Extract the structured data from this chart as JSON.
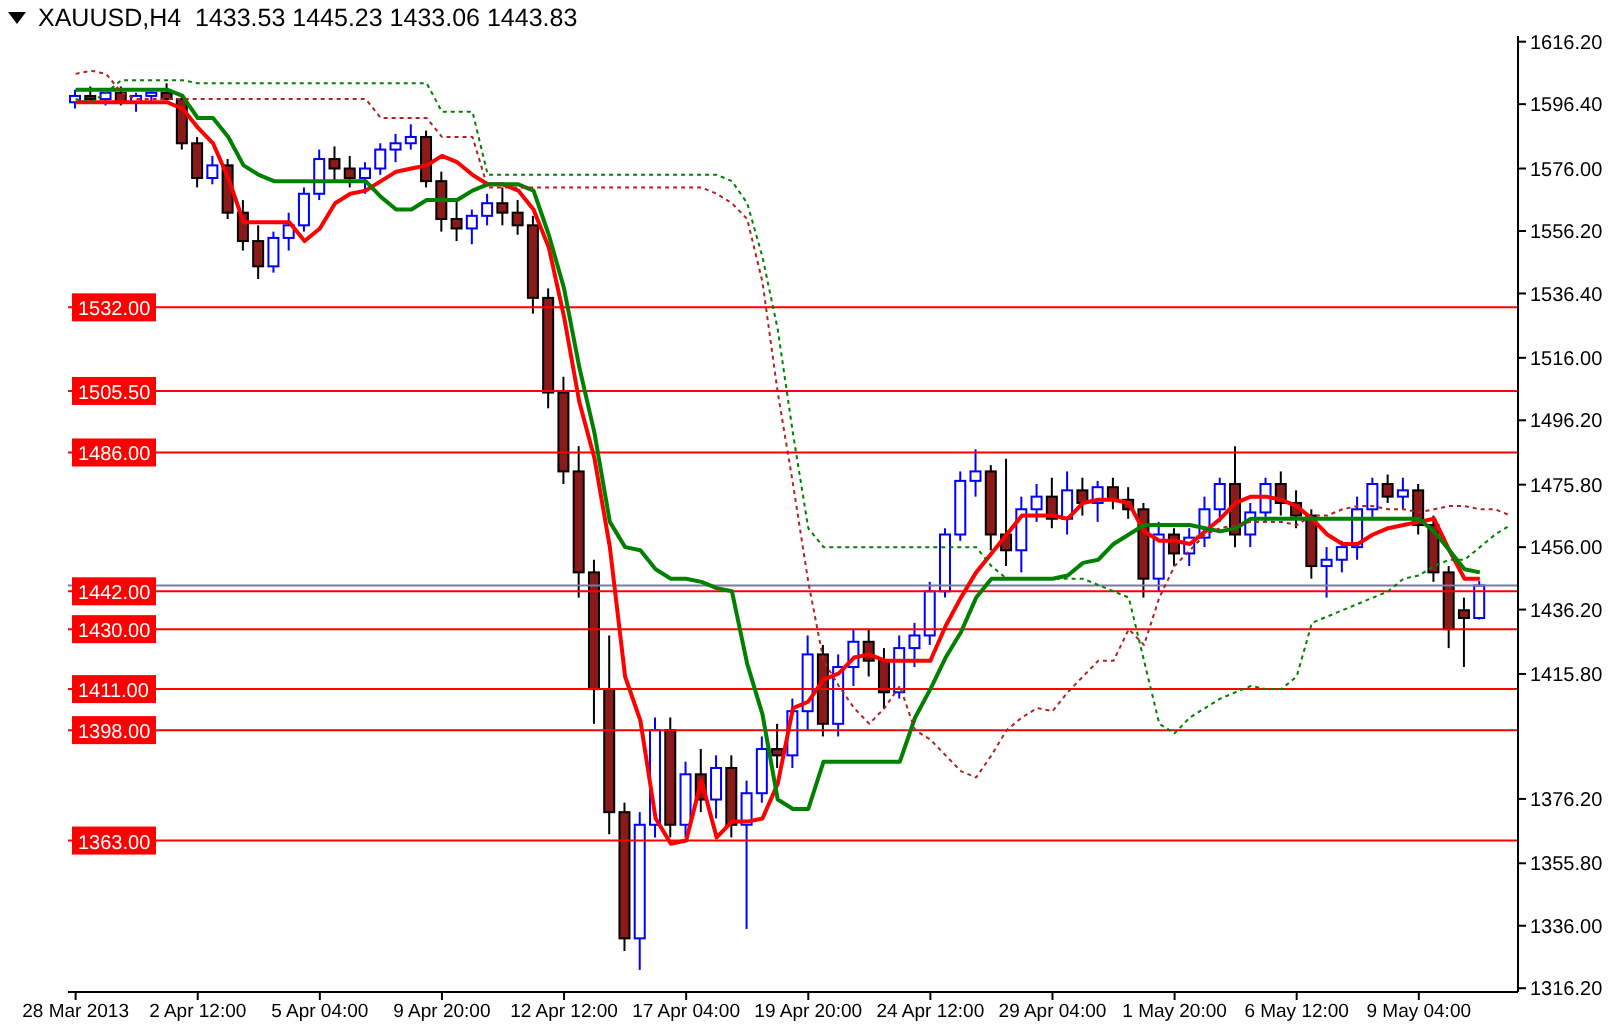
{
  "chart_data": {
    "type": "candlestick",
    "title": "XAUUSD,H4  1433.53 1445.23 1433.06 1443.83",
    "categories": [
      "28 Mar 2013",
      null,
      null,
      null,
      null,
      null,
      null,
      null,
      "2 Apr 12:00",
      null,
      null,
      null,
      null,
      null,
      null,
      null,
      "5 Apr 04:00",
      null,
      null,
      null,
      null,
      null,
      null,
      null,
      "9 Apr 20:00",
      null,
      null,
      null,
      null,
      null,
      null,
      null,
      "12 Apr 12:00",
      null,
      null,
      null,
      null,
      null,
      null,
      null,
      "17 Apr 04:00",
      null,
      null,
      null,
      null,
      null,
      null,
      null,
      "19 Apr 20:00",
      null,
      null,
      null,
      null,
      null,
      null,
      null,
      "24 Apr 12:00",
      null,
      null,
      null,
      null,
      null,
      null,
      null,
      "29 Apr 04:00",
      null,
      null,
      null,
      null,
      null,
      null,
      null,
      "1 May 20:00",
      null,
      null,
      null,
      null,
      null,
      null,
      null,
      "6 May 12:00",
      null,
      null,
      null,
      null,
      null,
      null,
      null,
      "9 May 04:00",
      null,
      null,
      null,
      null,
      null,
      null
    ],
    "ohlc": [
      [
        1597,
        1601,
        1595,
        1599
      ],
      [
        1599,
        1602,
        1597,
        1598
      ],
      [
        1598,
        1600,
        1596,
        1600
      ],
      [
        1600,
        1602,
        1596,
        1597
      ],
      [
        1597,
        1600,
        1594,
        1599
      ],
      [
        1599,
        1601,
        1597,
        1600
      ],
      [
        1600,
        1603,
        1598,
        1598
      ],
      [
        1598,
        1599,
        1582,
        1584
      ],
      [
        1584,
        1586,
        1570,
        1573
      ],
      [
        1573,
        1580,
        1571,
        1577
      ],
      [
        1577,
        1579,
        1560,
        1562
      ],
      [
        1562,
        1566,
        1550,
        1553
      ],
      [
        1553,
        1558,
        1541,
        1545
      ],
      [
        1545,
        1556,
        1543,
        1554
      ],
      [
        1554,
        1562,
        1550,
        1558
      ],
      [
        1558,
        1570,
        1556,
        1568
      ],
      [
        1568,
        1582,
        1566,
        1579
      ],
      [
        1579,
        1583,
        1572,
        1576
      ],
      [
        1576,
        1580,
        1570,
        1573
      ],
      [
        1573,
        1578,
        1568,
        1576
      ],
      [
        1576,
        1584,
        1574,
        1582
      ],
      [
        1582,
        1587,
        1578,
        1584
      ],
      [
        1584,
        1590,
        1582,
        1586
      ],
      [
        1586,
        1588,
        1570,
        1572
      ],
      [
        1572,
        1575,
        1556,
        1560
      ],
      [
        1560,
        1566,
        1553,
        1557
      ],
      [
        1557,
        1563,
        1552,
        1561
      ],
      [
        1561,
        1568,
        1558,
        1565
      ],
      [
        1565,
        1570,
        1558,
        1562
      ],
      [
        1562,
        1566,
        1555,
        1558
      ],
      [
        1558,
        1561,
        1530,
        1535
      ],
      [
        1535,
        1538,
        1500,
        1505
      ],
      [
        1505,
        1510,
        1476,
        1480
      ],
      [
        1480,
        1488,
        1440,
        1448
      ],
      [
        1448,
        1452,
        1400,
        1411
      ],
      [
        1411,
        1428,
        1365,
        1372
      ],
      [
        1372,
        1375,
        1328,
        1332
      ],
      [
        1332,
        1372,
        1322,
        1368
      ],
      [
        1368,
        1402,
        1364,
        1398
      ],
      [
        1398,
        1402,
        1364,
        1368
      ],
      [
        1368,
        1388,
        1364,
        1384
      ],
      [
        1384,
        1392,
        1372,
        1376
      ],
      [
        1376,
        1390,
        1370,
        1386
      ],
      [
        1386,
        1390,
        1364,
        1368
      ],
      [
        1368,
        1382,
        1335,
        1378
      ],
      [
        1378,
        1396,
        1375,
        1392
      ],
      [
        1392,
        1400,
        1386,
        1390
      ],
      [
        1390,
        1408,
        1386,
        1404
      ],
      [
        1404,
        1428,
        1398,
        1422
      ],
      [
        1422,
        1425,
        1396,
        1400
      ],
      [
        1400,
        1422,
        1396,
        1418
      ],
      [
        1418,
        1430,
        1412,
        1426
      ],
      [
        1426,
        1430,
        1415,
        1420
      ],
      [
        1420,
        1424,
        1405,
        1410
      ],
      [
        1410,
        1428,
        1408,
        1424
      ],
      [
        1424,
        1432,
        1418,
        1428
      ],
      [
        1428,
        1445,
        1425,
        1442
      ],
      [
        1442,
        1462,
        1440,
        1460
      ],
      [
        1460,
        1480,
        1458,
        1477
      ],
      [
        1477,
        1487,
        1472,
        1480
      ],
      [
        1480,
        1482,
        1455,
        1460
      ],
      [
        1460,
        1484,
        1450,
        1455
      ],
      [
        1455,
        1472,
        1448,
        1468
      ],
      [
        1468,
        1476,
        1464,
        1472
      ],
      [
        1472,
        1478,
        1462,
        1465
      ],
      [
        1465,
        1480,
        1460,
        1474
      ],
      [
        1474,
        1478,
        1466,
        1470
      ],
      [
        1470,
        1477,
        1464,
        1475
      ],
      [
        1475,
        1478,
        1468,
        1471
      ],
      [
        1471,
        1475,
        1465,
        1468
      ],
      [
        1468,
        1470,
        1440,
        1446
      ],
      [
        1446,
        1464,
        1442,
        1460
      ],
      [
        1460,
        1462,
        1450,
        1454
      ],
      [
        1454,
        1462,
        1450,
        1459
      ],
      [
        1459,
        1472,
        1456,
        1468
      ],
      [
        1468,
        1478,
        1464,
        1476
      ],
      [
        1476,
        1488,
        1456,
        1460
      ],
      [
        1460,
        1470,
        1456,
        1467
      ],
      [
        1467,
        1478,
        1464,
        1476
      ],
      [
        1476,
        1480,
        1466,
        1470
      ],
      [
        1470,
        1474,
        1462,
        1466
      ],
      [
        1466,
        1468,
        1446,
        1450
      ],
      [
        1450,
        1456,
        1440,
        1452
      ],
      [
        1452,
        1458,
        1448,
        1456
      ],
      [
        1456,
        1472,
        1452,
        1468
      ],
      [
        1468,
        1478,
        1465,
        1476
      ],
      [
        1476,
        1479,
        1470,
        1472
      ],
      [
        1472,
        1478,
        1468,
        1474
      ],
      [
        1474,
        1476,
        1460,
        1463
      ],
      [
        1463,
        1466,
        1445,
        1448
      ],
      [
        1448,
        1450,
        1424,
        1430
      ],
      [
        1436,
        1440,
        1418,
        1433.53
      ],
      [
        1433.53,
        1445.23,
        1433.06,
        1443.83
      ],
      null,
      null
    ],
    "series": [
      {
        "type": "line",
        "color": "#ff0000",
        "values": [
          1597,
          1597,
          1597,
          1597,
          1597,
          1597,
          1597,
          1595,
          1589,
          1584,
          1573,
          1559,
          1559,
          1559,
          1559,
          1553,
          1557,
          1565,
          1568,
          1569,
          1572,
          1575,
          1576,
          1577,
          1580,
          1578,
          1574,
          1571,
          1571,
          1569,
          1563,
          1551,
          1529,
          1502,
          1484,
          1456,
          1415,
          1401,
          1370,
          1362,
          1363,
          1382,
          1364,
          1369,
          1369,
          1370,
          1381,
          1405,
          1407,
          1414,
          1416,
          1421,
          1422,
          1420,
          1420,
          1420,
          1420,
          1431,
          1440,
          1448,
          1454,
          1460,
          1466,
          1466,
          1466,
          1465,
          1470,
          1471,
          1471,
          1470,
          1461,
          1458,
          1458,
          1457,
          1461,
          1465,
          1470,
          1472,
          1472,
          1471,
          1469,
          1465,
          1460,
          1457,
          1457,
          1460,
          1462,
          1463,
          1464,
          1465,
          1455,
          1446,
          1446,
          null,
          null
        ]
      },
      {
        "type": "line",
        "color": "#008000",
        "values": [
          1601,
          1601,
          1601,
          1601,
          1601,
          1601,
          1601,
          1599,
          1592,
          1592,
          1586,
          1577,
          1574,
          1572,
          1572,
          1572,
          1572,
          1572,
          1572,
          1572,
          1567,
          1563,
          1563,
          1566,
          1566,
          1566,
          1569,
          1571,
          1571,
          1571,
          1569,
          1555,
          1538,
          1513,
          1492,
          1464,
          1456,
          1455,
          1449,
          1446,
          1446,
          1445,
          1443,
          1442,
          1419,
          1403,
          1376,
          1373,
          1373,
          1388,
          1388,
          1388,
          1388,
          1388,
          1388,
          1402,
          1411,
          1421,
          1429,
          1440,
          1446,
          1446,
          1446,
          1446,
          1446,
          1447,
          1451,
          1452,
          1457,
          1460,
          1463,
          1463,
          1463,
          1463,
          1462,
          1461,
          1462,
          1465,
          1465,
          1465,
          1465,
          1465,
          1465,
          1465,
          1465,
          1465,
          1465,
          1465,
          1465,
          1461,
          1455,
          1449,
          1448,
          null,
          null
        ]
      },
      {
        "type": "line",
        "color": "#008000",
        "line_style": "dotted",
        "values": [
          1598,
          1597,
          1600,
          1604,
          1604,
          1604,
          1604,
          1604,
          1603,
          1603,
          1603,
          1603,
          1603,
          1603,
          1603,
          1603,
          1603,
          1603,
          1603,
          1603,
          1603,
          1603,
          1603,
          1603,
          1594,
          1594,
          1594,
          1574,
          1574,
          1574,
          1574,
          1574,
          1574,
          1574,
          1574,
          1574,
          1574,
          1574,
          1574,
          1574,
          1574,
          1574,
          1574,
          1572,
          1565,
          1548,
          1525,
          1492,
          1462,
          1456,
          1456,
          1456,
          1456,
          1456,
          1456,
          1456,
          1456,
          1456,
          1456,
          1456,
          1450,
          1446,
          1446,
          1446,
          1446,
          1446,
          1446,
          1444,
          1442,
          1440,
          1420,
          1400,
          1397,
          1402,
          1405,
          1408,
          1410,
          1412,
          1411,
          1411,
          1415,
          1432,
          1434,
          1436,
          1438,
          1440,
          1442,
          1446,
          1447,
          1450,
          1452,
          1452,
          1456,
          1460,
          1463
        ]
      },
      {
        "type": "line",
        "color": "#b22222",
        "line_style": "dotted",
        "values": [
          1606,
          1607,
          1606,
          1600,
          1598,
          1598,
          1598,
          1598,
          1598,
          1598,
          1598,
          1598,
          1598,
          1598,
          1598,
          1598,
          1598,
          1598,
          1598,
          1598,
          1592,
          1592,
          1592,
          1592,
          1586,
          1586,
          1586,
          1570,
          1570,
          1570,
          1570,
          1570,
          1570,
          1570,
          1570,
          1570,
          1570,
          1570,
          1570,
          1570,
          1570,
          1570,
          1568,
          1565,
          1560,
          1540,
          1505,
          1476,
          1445,
          1420,
          1412,
          1405,
          1400,
          1405,
          1412,
          1398,
          1395,
          1390,
          1385,
          1383,
          1390,
          1398,
          1402,
          1405,
          1404,
          1410,
          1415,
          1420,
          1420,
          1430,
          1425,
          1440,
          1450,
          1455,
          1460,
          1462,
          1463,
          1464,
          1464,
          1464,
          1463,
          1466,
          1466,
          1468,
          1469,
          1469,
          1468,
          1468,
          1467,
          1468,
          1469,
          1469,
          1468,
          1468,
          1466
        ]
      }
    ],
    "ylim": [
      1315,
      1618
    ],
    "yticks": [
      {
        "value": 1616.2,
        "label": "1616.20"
      },
      {
        "value": 1596.4,
        "label": "1596.40"
      },
      {
        "value": 1576,
        "label": "1576.00"
      },
      {
        "value": 1556.2,
        "label": "1556.20"
      },
      {
        "value": 1536.4,
        "label": "1536.40"
      },
      {
        "value": 1516,
        "label": "1516.00"
      },
      {
        "value": 1496.2,
        "label": "1496.20"
      },
      {
        "value": 1475.8,
        "label": "1475.80"
      },
      {
        "value": 1456,
        "label": "1456.00"
      },
      {
        "value": 1436.2,
        "label": "1436.20"
      },
      {
        "value": 1415.8,
        "label": "1415.80"
      },
      {
        "value": 1376.2,
        "label": "1376.20"
      },
      {
        "value": 1355.8,
        "label": "1355.80"
      },
      {
        "value": 1336,
        "label": "1336.00"
      },
      {
        "value": 1316.2,
        "label": "1316.20"
      }
    ],
    "ref_lines": [
      {
        "axis": "y",
        "value": 1532,
        "label": "1532.00",
        "color": "#ff0000"
      },
      {
        "axis": "y",
        "value": 1505.5,
        "label": "1505.50",
        "color": "#ff0000"
      },
      {
        "axis": "y",
        "value": 1486,
        "label": "1486.00",
        "color": "#ff0000"
      },
      {
        "axis": "y",
        "value": 1443.83,
        "color": "#7a7a9a"
      },
      {
        "axis": "y",
        "value": 1442,
        "label": "1442.00",
        "color": "#ff0000"
      },
      {
        "axis": "y",
        "value": 1430,
        "label": "1430.00",
        "color": "#ff0000"
      },
      {
        "axis": "y",
        "value": 1411,
        "label": "1411.00",
        "color": "#ff0000"
      },
      {
        "axis": "y",
        "value": 1398,
        "label": "1398.00",
        "color": "#ff0000"
      },
      {
        "axis": "y",
        "value": 1363,
        "label": "1363.00",
        "color": "#ff0000"
      }
    ]
  }
}
